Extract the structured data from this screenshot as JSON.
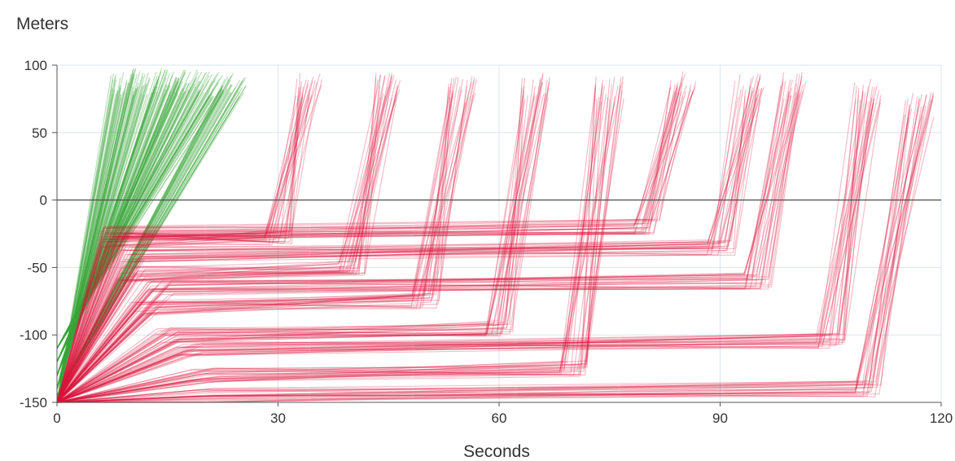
{
  "chart_data": {
    "type": "line",
    "xlabel": "Seconds",
    "ylabel": "Meters",
    "xlim": [
      0,
      120
    ],
    "ylim": [
      -150,
      100
    ],
    "x_ticks": [
      "0",
      "30",
      "60",
      "90",
      "120"
    ],
    "y_ticks": [
      "100",
      "50",
      "0",
      "-50",
      "-100",
      "-150"
    ],
    "grid": true,
    "legend": "none",
    "colors": {
      "green_series": "#3aa53a",
      "red_series": "#dc143c",
      "grid": "#dde3f0",
      "zero_line": "#555555"
    },
    "series": [
      {
        "color": "green",
        "points": [
          [
            0,
            -150
          ],
          [
            9,
            85
          ]
        ]
      },
      {
        "color": "green",
        "points": [
          [
            0,
            -140
          ],
          [
            12,
            88
          ]
        ]
      },
      {
        "color": "green",
        "points": [
          [
            0,
            -130
          ],
          [
            15,
            88
          ]
        ]
      },
      {
        "color": "green",
        "points": [
          [
            0,
            -120
          ],
          [
            18,
            87
          ]
        ]
      },
      {
        "color": "green",
        "points": [
          [
            0,
            -110
          ],
          [
            21,
            86
          ]
        ]
      },
      {
        "color": "green",
        "points": [
          [
            0,
            -145
          ],
          [
            24,
            86
          ]
        ]
      },
      {
        "color": "red",
        "points": [
          [
            0,
            -150
          ],
          [
            8,
            -30
          ],
          [
            30,
            -28
          ],
          [
            34,
            85
          ]
        ]
      },
      {
        "color": "red",
        "points": [
          [
            0,
            -150
          ],
          [
            10,
            -55
          ],
          [
            40,
            -50
          ],
          [
            45,
            85
          ]
        ]
      },
      {
        "color": "red",
        "points": [
          [
            0,
            -150
          ],
          [
            12,
            -80
          ],
          [
            50,
            -75
          ],
          [
            55,
            82
          ]
        ]
      },
      {
        "color": "red",
        "points": [
          [
            0,
            -150
          ],
          [
            15,
            -100
          ],
          [
            60,
            -95
          ],
          [
            65,
            85
          ]
        ]
      },
      {
        "color": "red",
        "points": [
          [
            0,
            -150
          ],
          [
            20,
            -130
          ],
          [
            70,
            -125
          ],
          [
            75,
            82
          ]
        ]
      },
      {
        "color": "red",
        "points": [
          [
            0,
            -150
          ],
          [
            8,
            -25
          ],
          [
            80,
            -20
          ],
          [
            85,
            86
          ]
        ]
      },
      {
        "color": "red",
        "points": [
          [
            0,
            -150
          ],
          [
            10,
            -40
          ],
          [
            90,
            -35
          ],
          [
            94,
            84
          ]
        ]
      },
      {
        "color": "red",
        "points": [
          [
            0,
            -150
          ],
          [
            14,
            -65
          ],
          [
            95,
            -60
          ],
          [
            100,
            85
          ]
        ]
      },
      {
        "color": "red",
        "points": [
          [
            0,
            -150
          ],
          [
            18,
            -110
          ],
          [
            105,
            -105
          ],
          [
            110,
            80
          ]
        ]
      },
      {
        "color": "red",
        "points": [
          [
            0,
            -150
          ],
          [
            20,
            -145
          ],
          [
            110,
            -140
          ],
          [
            117,
            70
          ]
        ]
      }
    ]
  }
}
